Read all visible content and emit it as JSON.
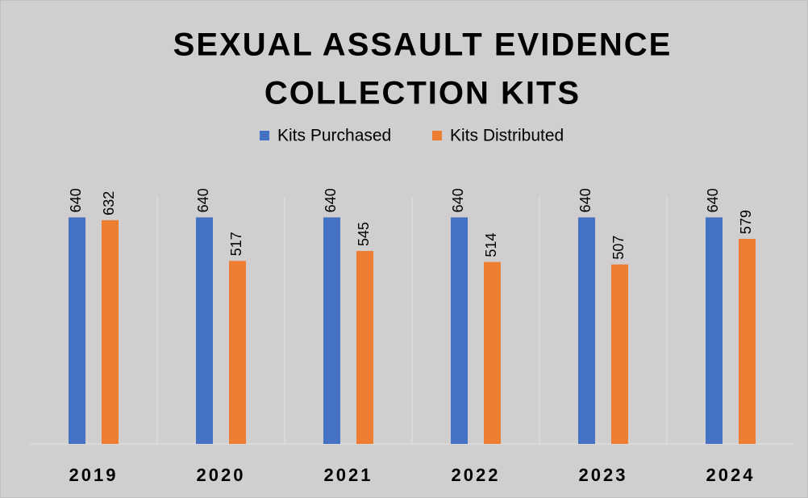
{
  "chart_data": {
    "type": "bar",
    "title": [
      "SEXUAL ASSAULT EVIDENCE",
      "COLLECTION KITS"
    ],
    "categories": [
      "2019",
      "2020",
      "2021",
      "2022",
      "2023",
      "2024"
    ],
    "series": [
      {
        "name": "Kits Purchased",
        "color": "#4472c4",
        "values": [
          640,
          640,
          640,
          640,
          640,
          640
        ]
      },
      {
        "name": "Kits Distributed",
        "color": "#ed7d31",
        "values": [
          632,
          517,
          545,
          514,
          507,
          579
        ]
      }
    ],
    "ylim": [
      0,
      700
    ],
    "legend": "top"
  }
}
